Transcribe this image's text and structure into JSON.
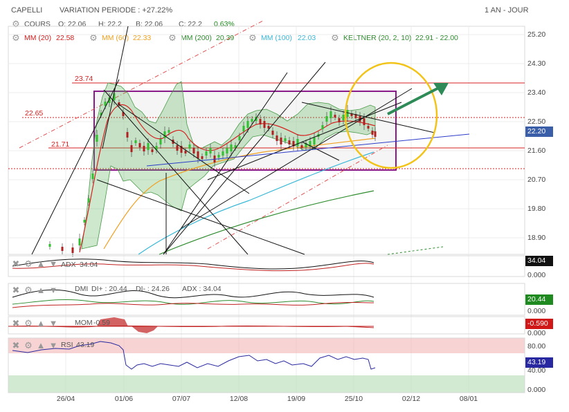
{
  "header": {
    "ticker": "CAPELLI",
    "variation": "VARIATION PERIODE : +27.22%",
    "period": "1 AN - JOUR"
  },
  "legend_main": {
    "cours": {
      "label": "COURS",
      "o": "O: 22.06",
      "h": "H: 22.2",
      "b": "B: 22.06",
      "c": "C: 22.2",
      "pct": "0.63%"
    },
    "mm20": {
      "label": "MM (20)",
      "value": "22.58",
      "color": "#d62020"
    },
    "mm60": {
      "label": "MM (60)",
      "value": "22.33",
      "color": "#f0a020"
    },
    "mm200": {
      "label": "MM (200)",
      "value": "20.39",
      "color": "#2e8b2e"
    },
    "mm100": {
      "label": "MM (100)",
      "value": "22.03",
      "color": "#3ab8d8"
    },
    "keltner": {
      "label": "KELTNER (20, 2, 10)",
      "value": "22.91 - 22.00",
      "color": "#2e8b2e"
    }
  },
  "annotations": {
    "h1": "23.74",
    "h2": "22.65",
    "h3": "21.71"
  },
  "panels": {
    "adx": {
      "label": "ADX",
      "value": "34.04",
      "badge": "34.04",
      "badge_color": "#111111",
      "axis": "0.000"
    },
    "dmi": {
      "label": "DMI",
      "dip": "DI+ : 20.44",
      "dim": "DI- : 24.26",
      "adx": "ADX : 34.04",
      "badge": "20.44",
      "badge_color": "#1f8a1f",
      "axis": "0.000"
    },
    "mom": {
      "label": "MOM",
      "value": "-0.59",
      "badge": "-0.590",
      "badge_color": "#d01818",
      "axis": "0.000"
    },
    "rsi": {
      "label": "RSI",
      "value": "43.19",
      "badge": "43.19",
      "badge_color": "#2828a0",
      "axis_top": "80.00",
      "axis_mid": "40.00",
      "axis_bot": "0.000"
    }
  },
  "chart_data": {
    "type": "candlestick",
    "price_axis": {
      "ticks": [
        25.2,
        24.3,
        23.4,
        22.5,
        21.6,
        20.7,
        19.8,
        18.9
      ],
      "last_price": "22.20"
    },
    "x_tick_labels": [
      "26/04",
      "01/06",
      "07/07",
      "12/08",
      "19/09",
      "25/10",
      "02/12",
      "08/01"
    ],
    "rsi_levels": [
      80,
      40
    ],
    "grid": true
  }
}
